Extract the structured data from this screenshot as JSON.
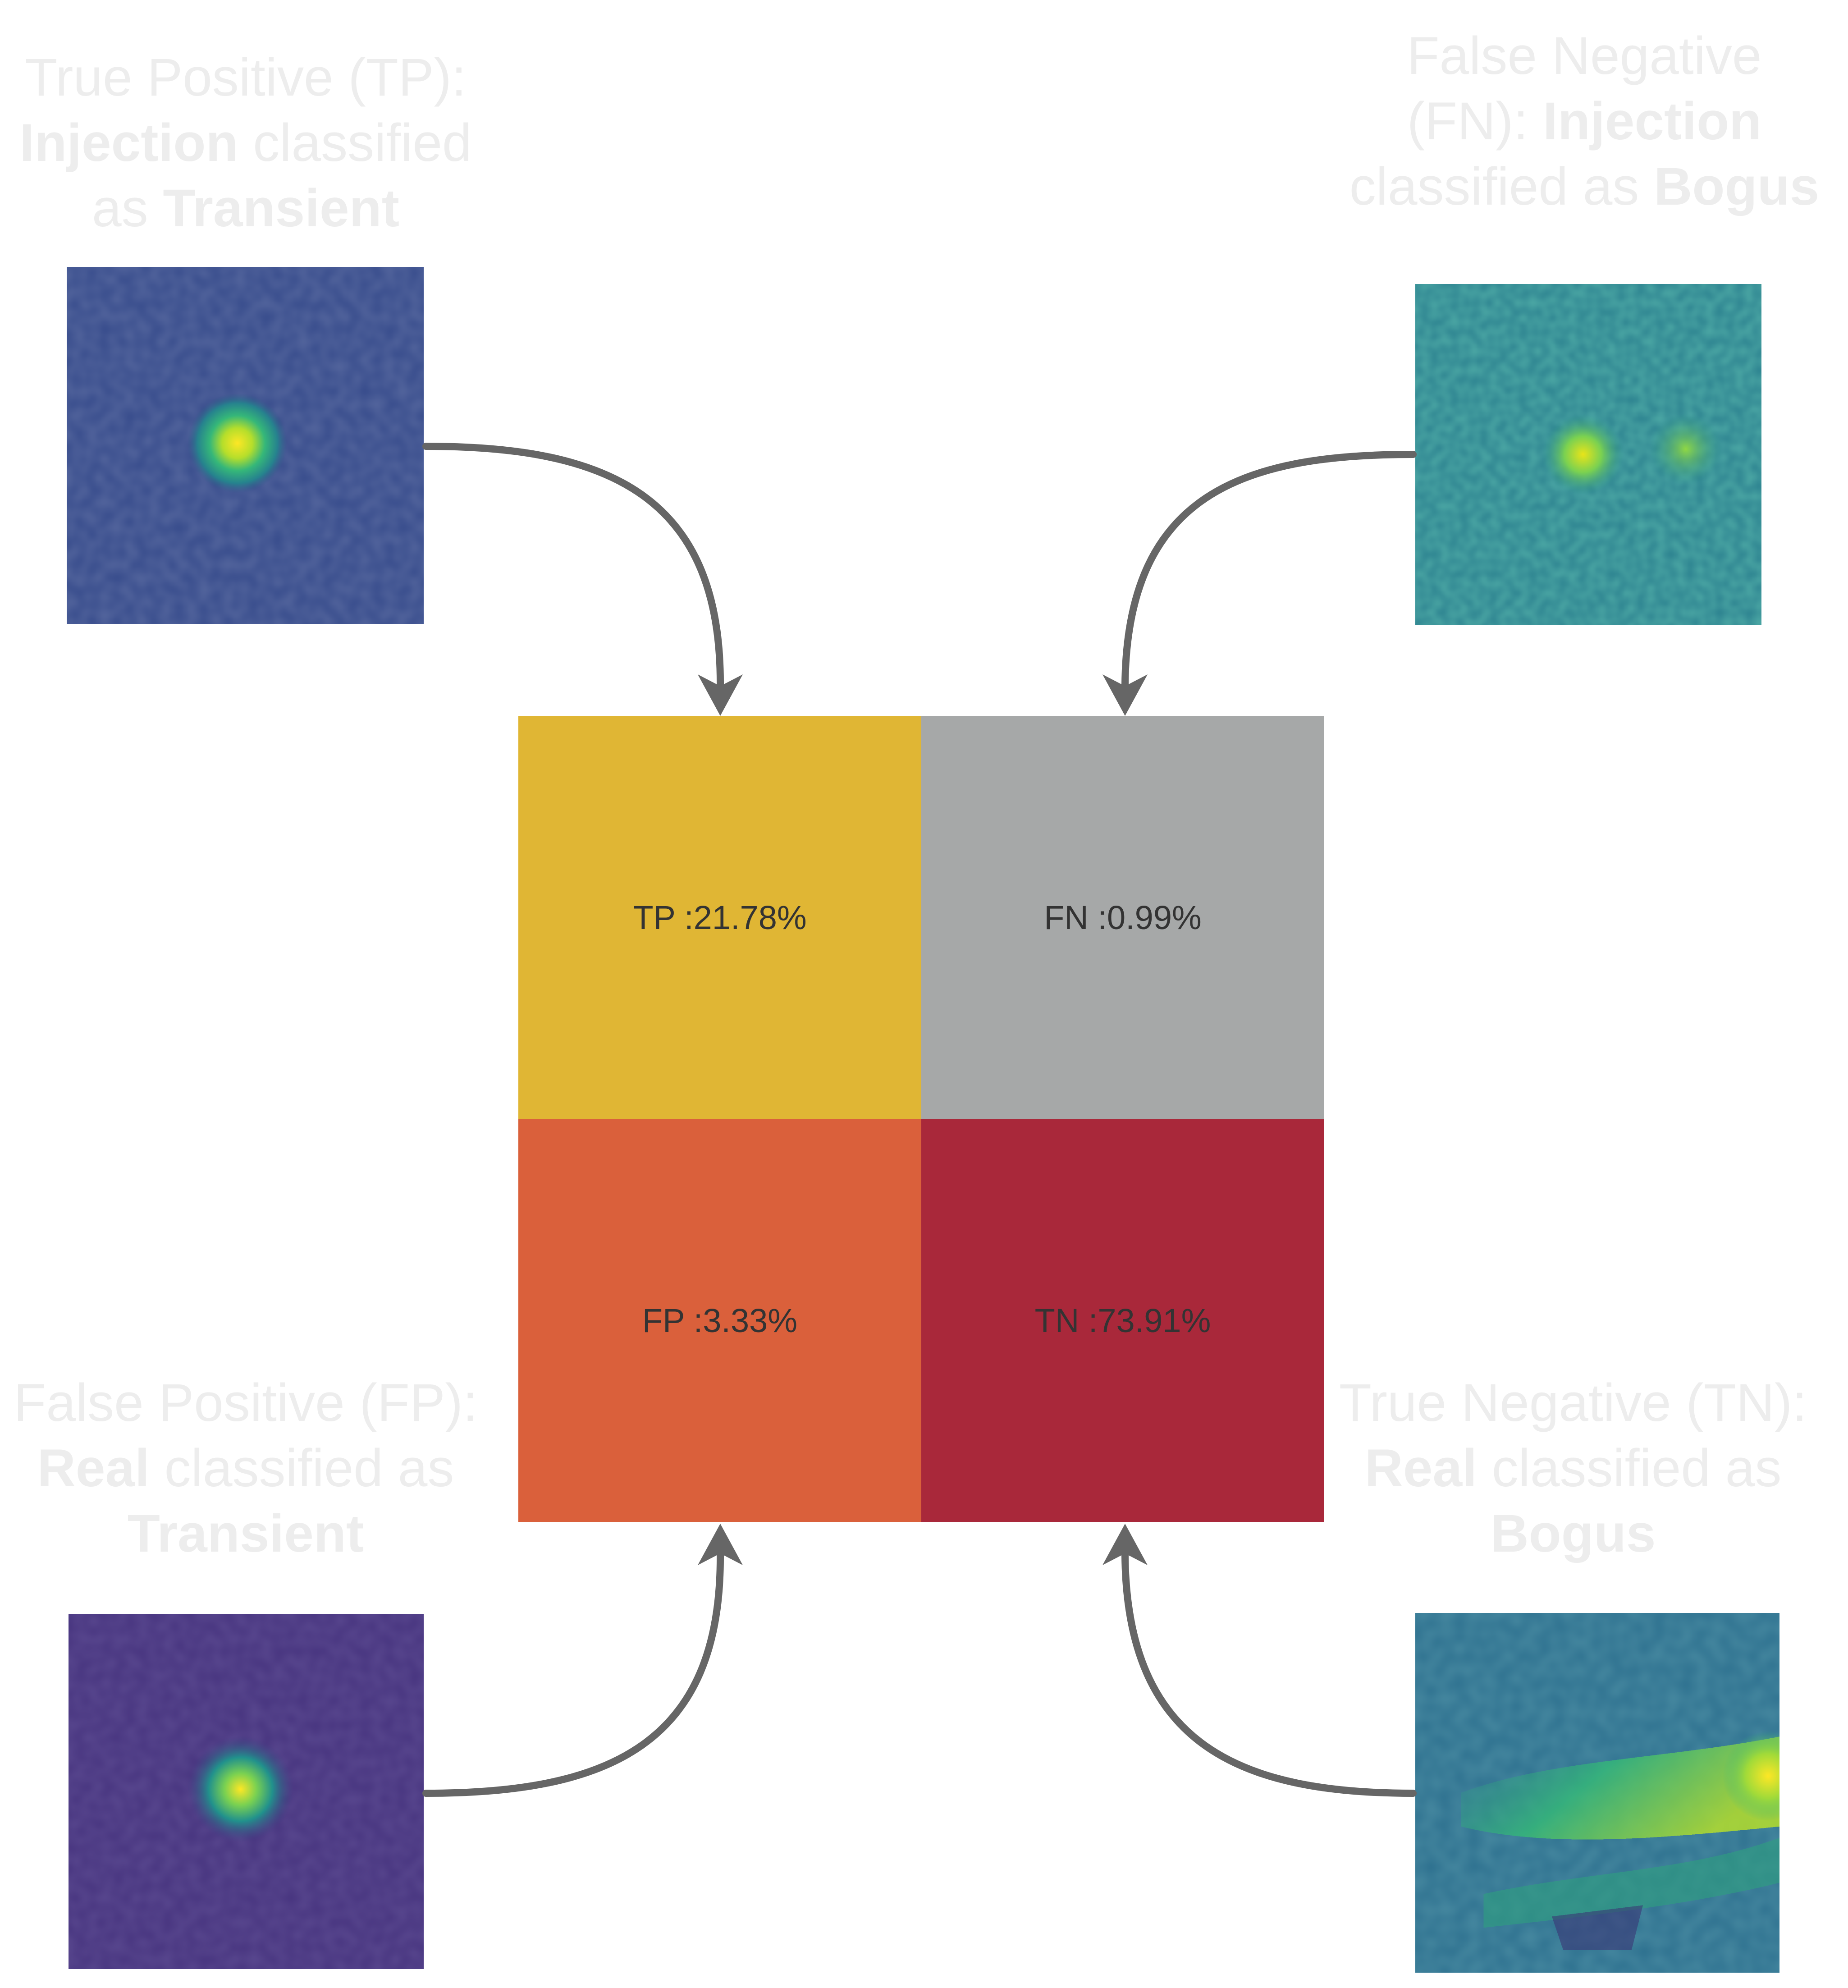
{
  "captions": {
    "tp": {
      "line1": "True Positive (TP):",
      "line2_bold": "Injection",
      "line2_rest": " classified",
      "line3_pre": "as ",
      "line3_bold": "Transient"
    },
    "fn": {
      "line1": "False Negative",
      "line2_pre": "(FN): ",
      "line2_bold": "Injection",
      "line3_pre": "classified as ",
      "line3_bold": "Bogus"
    },
    "fp": {
      "line1": "False Positive (FP):",
      "line2_bold": "Real",
      "line2_rest": " classified as",
      "line3_bold": "Transient"
    },
    "tn": {
      "line1": "True Negative (TN):",
      "line2_bold": "Real",
      "line2_rest": " classified as",
      "line3_bold": "Bogus"
    }
  },
  "matrix": {
    "tp": {
      "label": "TP :21.78%",
      "color": "#e0b634"
    },
    "fn": {
      "label": "FN :0.99%",
      "color": "#a6a8a8"
    },
    "fp": {
      "label": "FP :3.33%",
      "color": "#da603b"
    },
    "tn": {
      "label": "TN :73.91%",
      "color": "#a9283a"
    }
  },
  "arrow_color": "#666666"
}
